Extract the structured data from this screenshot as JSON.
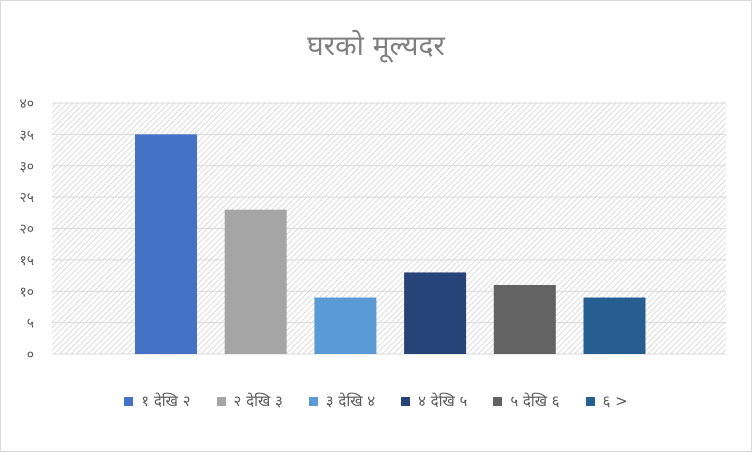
{
  "chart_data": {
    "type": "bar",
    "title": "घरको मूल्यदर",
    "xlabel": "",
    "ylabel": "",
    "categories": [
      "१ देखि २",
      "२ देखि ३",
      "३ देखि ४",
      "४ देखि ५",
      "५ देखि ६",
      "६ >"
    ],
    "values": [
      35,
      23,
      9,
      13,
      11,
      9
    ],
    "colors": [
      "#4472c4",
      "#a5a5a5",
      "#5b9bd5",
      "#264478",
      "#636363",
      "#255e91"
    ],
    "ylim": [
      0,
      40
    ],
    "yticks": [
      0,
      5,
      10,
      15,
      20,
      25,
      30,
      35,
      40
    ],
    "ytick_labels": [
      "०",
      "५",
      "१०",
      "१५",
      "२०",
      "२५",
      "३०",
      "३५",
      "४०"
    ],
    "grid": true,
    "legend_position": "bottom"
  }
}
